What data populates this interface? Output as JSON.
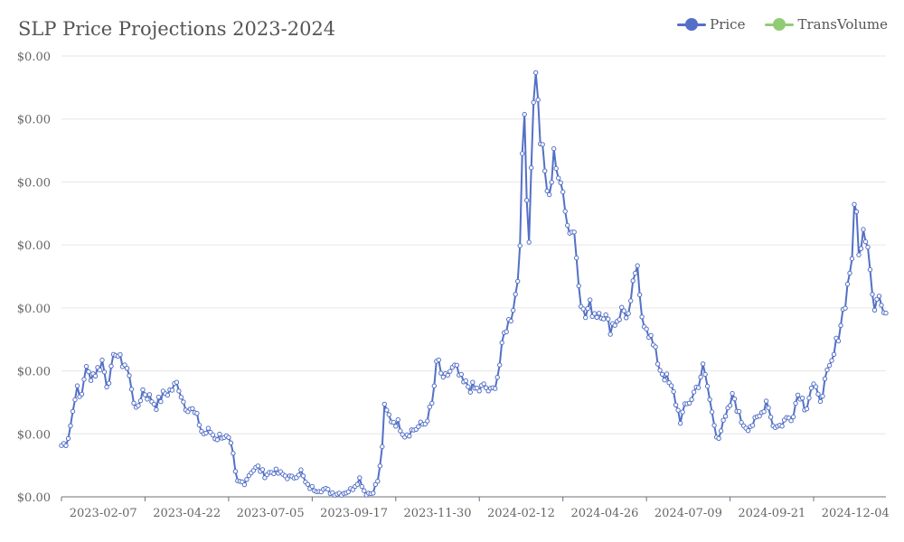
{
  "chart_data": {
    "type": "line",
    "title": "SLP Price Projections 2023-2024",
    "xlabel": "",
    "ylabel": "",
    "y_tick_labels": [
      "$0.00",
      "$0.00",
      "$0.00",
      "$0.00",
      "$0.00",
      "$0.00",
      "$0.00",
      "$0.00"
    ],
    "ylim": [
      0,
      6
    ],
    "x_tick_labels": [
      "2023-02-07",
      "2023-04-22",
      "2023-07-05",
      "2023-09-17",
      "2023-11-30",
      "2024-02-12",
      "2024-04-26",
      "2024-07-09",
      "2024-09-21",
      "2024-12-04"
    ],
    "xlim": [
      "2023-01-01",
      "2024-12-31"
    ],
    "grid": true,
    "legend_position": "top-right",
    "series": [
      {
        "name": "Price",
        "color": "#5470c6",
        "anchors": [
          [
            "2023-01-01",
            0.7
          ],
          [
            "2023-01-06",
            0.75
          ],
          [
            "2023-01-10",
            1.05
          ],
          [
            "2023-01-14",
            1.5
          ],
          [
            "2023-01-18",
            1.3
          ],
          [
            "2023-01-22",
            1.75
          ],
          [
            "2023-01-26",
            1.65
          ],
          [
            "2023-02-01",
            1.7
          ],
          [
            "2023-02-06",
            1.85
          ],
          [
            "2023-02-10",
            1.55
          ],
          [
            "2023-02-14",
            1.7
          ],
          [
            "2023-02-18",
            2.0
          ],
          [
            "2023-02-22",
            1.85
          ],
          [
            "2023-02-27",
            1.8
          ],
          [
            "2023-03-04",
            1.5
          ],
          [
            "2023-03-08",
            1.15
          ],
          [
            "2023-03-14",
            1.45
          ],
          [
            "2023-03-20",
            1.35
          ],
          [
            "2023-03-26",
            1.25
          ],
          [
            "2023-04-02",
            1.4
          ],
          [
            "2023-04-08",
            1.45
          ],
          [
            "2023-04-14",
            1.55
          ],
          [
            "2023-04-20",
            1.25
          ],
          [
            "2023-04-26",
            1.2
          ],
          [
            "2023-05-02",
            1.05
          ],
          [
            "2023-05-06",
            0.85
          ],
          [
            "2023-05-12",
            0.9
          ],
          [
            "2023-05-18",
            0.8
          ],
          [
            "2023-05-24",
            0.85
          ],
          [
            "2023-05-30",
            0.75
          ],
          [
            "2023-06-02",
            0.55
          ],
          [
            "2023-06-05",
            0.2
          ],
          [
            "2023-06-12",
            0.2
          ],
          [
            "2023-06-18",
            0.35
          ],
          [
            "2023-06-24",
            0.4
          ],
          [
            "2023-06-30",
            0.3
          ],
          [
            "2023-07-08",
            0.35
          ],
          [
            "2023-07-16",
            0.3
          ],
          [
            "2023-07-24",
            0.25
          ],
          [
            "2023-08-01",
            0.35
          ],
          [
            "2023-08-06",
            0.15
          ],
          [
            "2023-08-14",
            0.1
          ],
          [
            "2023-08-22",
            0.1
          ],
          [
            "2023-08-30",
            0.05
          ],
          [
            "2023-09-07",
            0.05
          ],
          [
            "2023-09-15",
            0.1
          ],
          [
            "2023-09-22",
            0.25
          ],
          [
            "2023-09-27",
            0.05
          ],
          [
            "2023-10-03",
            0.05
          ],
          [
            "2023-10-09",
            0.25
          ],
          [
            "2023-10-12",
            0.7
          ],
          [
            "2023-10-14",
            1.2
          ],
          [
            "2023-10-20",
            1.05
          ],
          [
            "2023-10-26",
            1.0
          ],
          [
            "2023-11-01",
            0.85
          ],
          [
            "2023-11-07",
            0.9
          ],
          [
            "2023-11-13",
            0.95
          ],
          [
            "2023-11-19",
            1.0
          ],
          [
            "2023-11-25",
            1.25
          ],
          [
            "2023-11-30",
            1.9
          ],
          [
            "2023-12-05",
            1.55
          ],
          [
            "2023-12-10",
            1.7
          ],
          [
            "2023-12-16",
            1.75
          ],
          [
            "2023-12-22",
            1.55
          ],
          [
            "2023-12-28",
            1.5
          ],
          [
            "2024-01-05",
            1.45
          ],
          [
            "2024-01-11",
            1.5
          ],
          [
            "2024-01-17",
            1.4
          ],
          [
            "2024-01-23",
            1.7
          ],
          [
            "2024-01-29",
            2.3
          ],
          [
            "2024-02-02",
            2.4
          ],
          [
            "2024-02-07",
            2.75
          ],
          [
            "2024-02-10",
            3.1
          ],
          [
            "2024-02-13",
            4.5
          ],
          [
            "2024-02-15",
            5.2
          ],
          [
            "2024-02-17",
            4.2
          ],
          [
            "2024-02-19",
            3.5
          ],
          [
            "2024-02-21",
            4.6
          ],
          [
            "2024-02-23",
            5.3
          ],
          [
            "2024-02-25",
            5.9
          ],
          [
            "2024-02-28",
            5.0
          ],
          [
            "2024-03-04",
            4.4
          ],
          [
            "2024-03-08",
            4.0
          ],
          [
            "2024-03-12",
            4.8
          ],
          [
            "2024-03-16",
            4.2
          ],
          [
            "2024-03-20",
            4.3
          ],
          [
            "2024-03-24",
            3.7
          ],
          [
            "2024-03-30",
            3.6
          ],
          [
            "2024-04-05",
            2.7
          ],
          [
            "2024-04-08",
            2.4
          ],
          [
            "2024-04-12",
            2.6
          ],
          [
            "2024-04-18",
            2.5
          ],
          [
            "2024-04-24",
            2.55
          ],
          [
            "2024-04-30",
            2.3
          ],
          [
            "2024-05-06",
            2.4
          ],
          [
            "2024-05-12",
            2.55
          ],
          [
            "2024-05-18",
            2.45
          ],
          [
            "2024-05-24",
            3.2
          ],
          [
            "2024-05-28",
            2.5
          ],
          [
            "2024-06-02",
            2.35
          ],
          [
            "2024-06-08",
            2.05
          ],
          [
            "2024-06-14",
            1.75
          ],
          [
            "2024-06-20",
            1.6
          ],
          [
            "2024-06-26",
            1.4
          ],
          [
            "2024-07-02",
            1.05
          ],
          [
            "2024-07-06",
            1.2
          ],
          [
            "2024-07-12",
            1.35
          ],
          [
            "2024-07-18",
            1.55
          ],
          [
            "2024-07-22",
            1.75
          ],
          [
            "2024-07-26",
            1.5
          ],
          [
            "2024-07-31",
            1.05
          ],
          [
            "2024-08-04",
            0.8
          ],
          [
            "2024-08-08",
            0.95
          ],
          [
            "2024-08-12",
            1.1
          ],
          [
            "2024-08-18",
            1.4
          ],
          [
            "2024-08-24",
            1.05
          ],
          [
            "2024-08-30",
            0.95
          ],
          [
            "2024-09-05",
            1.0
          ],
          [
            "2024-09-11",
            1.1
          ],
          [
            "2024-09-17",
            1.35
          ],
          [
            "2024-09-21",
            1.0
          ],
          [
            "2024-09-27",
            0.95
          ],
          [
            "2024-10-03",
            1.05
          ],
          [
            "2024-10-09",
            1.1
          ],
          [
            "2024-10-15",
            1.45
          ],
          [
            "2024-10-21",
            1.2
          ],
          [
            "2024-10-27",
            1.55
          ],
          [
            "2024-11-02",
            1.3
          ],
          [
            "2024-11-08",
            1.6
          ],
          [
            "2024-11-14",
            1.85
          ],
          [
            "2024-11-20",
            2.3
          ],
          [
            "2024-11-26",
            2.75
          ],
          [
            "2024-12-01",
            3.3
          ],
          [
            "2024-12-04",
            4.1
          ],
          [
            "2024-12-06",
            3.6
          ],
          [
            "2024-12-08",
            3.2
          ],
          [
            "2024-12-12",
            3.7
          ],
          [
            "2024-12-16",
            3.4
          ],
          [
            "2024-12-20",
            2.6
          ],
          [
            "2024-12-24",
            2.8
          ],
          [
            "2024-12-27",
            2.6
          ],
          [
            "2024-12-31",
            2.4
          ]
        ]
      },
      {
        "name": "TransVolume",
        "color": "#91cc75",
        "anchors": []
      }
    ]
  }
}
